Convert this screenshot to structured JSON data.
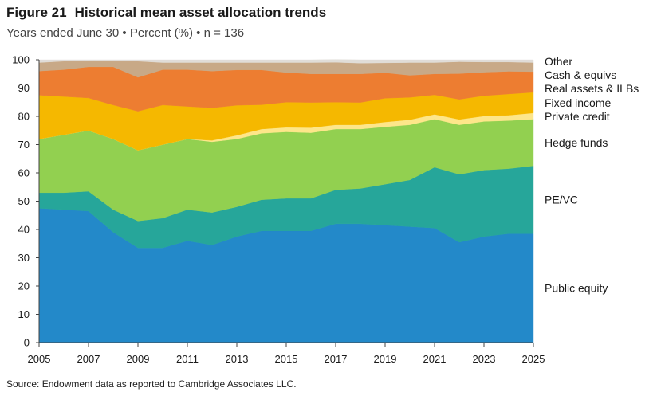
{
  "figure": {
    "number": "Figure 21",
    "title": "Historical mean asset allocation trends",
    "subtitle": "Years ended June 30 • Percent (%) • n = 136",
    "source": "Source: Endowment data as reported to Cambridge Associates LLC."
  },
  "chart_data": {
    "type": "area",
    "stacked": true,
    "title": "Historical mean asset allocation trends",
    "xlabel": "",
    "ylabel": "Percent (%)",
    "xlim": [
      2005,
      2025
    ],
    "ylim": [
      0,
      100
    ],
    "x": [
      2005,
      2006,
      2007,
      2008,
      2009,
      2010,
      2011,
      2012,
      2013,
      2014,
      2015,
      2016,
      2017,
      2018,
      2019,
      2020,
      2021,
      2022,
      2023,
      2024,
      2025
    ],
    "x_ticks": [
      2005,
      2007,
      2009,
      2011,
      2013,
      2015,
      2017,
      2019,
      2021,
      2023,
      2025
    ],
    "y_ticks": [
      0,
      10,
      20,
      30,
      40,
      50,
      60,
      70,
      80,
      90,
      100
    ],
    "series": [
      {
        "name": "Public equity",
        "color": "#2389c9",
        "values": [
          47.5,
          47,
          46.5,
          39,
          33.5,
          33.5,
          36,
          34.5,
          37.5,
          39.5,
          39.5,
          39.5,
          42,
          42,
          41.5,
          41,
          40.5,
          35.5,
          37.5,
          38.5,
          38.5
        ]
      },
      {
        "name": "PE/VC",
        "color": "#26a69a",
        "values": [
          5.5,
          6,
          7,
          8,
          9.5,
          10.5,
          11,
          11.5,
          10.5,
          11,
          11.5,
          11.5,
          12,
          12.5,
          14.5,
          16.5,
          21.5,
          24,
          23.5,
          23,
          24
        ]
      },
      {
        "name": "Hedge funds",
        "color": "#92d050",
        "values": [
          19,
          20.5,
          21.5,
          25,
          25,
          26,
          25,
          25,
          24,
          23.5,
          23.5,
          23.2,
          21.5,
          21,
          20.3,
          19.5,
          17,
          17.5,
          17.2,
          17,
          16.5
        ]
      },
      {
        "name": "Private credit",
        "color": "#fde68a",
        "values": [
          0,
          0,
          0,
          0,
          0,
          0,
          0,
          0.5,
          1.3,
          1.5,
          1.6,
          1.8,
          1.5,
          1.5,
          1.7,
          1.8,
          1.7,
          1.9,
          1.9,
          1.9,
          2.2
        ]
      },
      {
        "name": "Fixed income",
        "color": "#f5b800",
        "values": [
          15.5,
          13.5,
          11.5,
          12,
          13.8,
          14,
          11.5,
          11.5,
          10.6,
          8.6,
          8.9,
          8.9,
          8,
          7.9,
          8.4,
          7.9,
          6.9,
          7.1,
          7.2,
          7.5,
          7.3
        ]
      },
      {
        "name": "Real assets & ILBs",
        "color": "#ed7d31",
        "values": [
          8.5,
          9.5,
          11,
          13.5,
          12,
          12.5,
          13,
          13,
          12.5,
          12.3,
          10.5,
          10.1,
          10,
          10.1,
          9,
          7.8,
          7.4,
          9.1,
          8.3,
          8,
          7.3
        ]
      },
      {
        "name": "Cash & equivs",
        "color": "#c8a987",
        "values": [
          3,
          3,
          2.2,
          2,
          5.7,
          2.5,
          2.5,
          3,
          2.6,
          2.6,
          3.5,
          4,
          4.1,
          3.8,
          3.5,
          4.5,
          4,
          4.2,
          3.6,
          3.3,
          3.2
        ]
      },
      {
        "name": "Other",
        "color": "#e0ddd8",
        "values": [
          1,
          0.5,
          0.3,
          0.5,
          0.5,
          1,
          1,
          1,
          1,
          1,
          1,
          1,
          1,
          1.2,
          1.1,
          1,
          1,
          0.7,
          0.8,
          0.8,
          1
        ]
      }
    ],
    "legend": "right, inline labels"
  }
}
